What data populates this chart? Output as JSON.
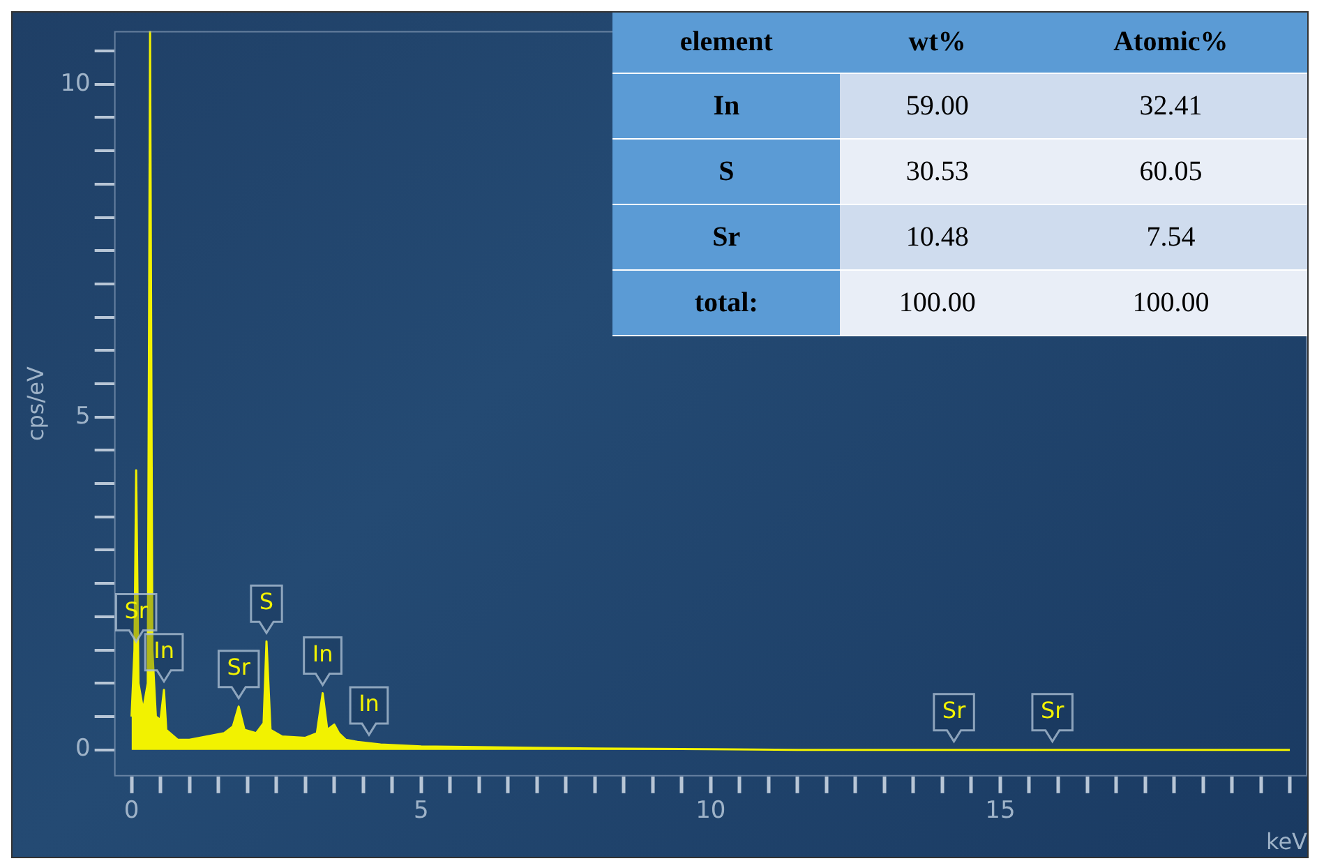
{
  "chart_data": [
    {
      "type": "area",
      "ylabel": "cps/eV",
      "xlabel": "keV",
      "color": "#f2f200",
      "x": [
        0,
        0.05,
        0.08,
        0.12,
        0.2,
        0.28,
        0.32,
        0.36,
        0.42,
        0.5,
        0.56,
        0.6,
        0.8,
        1.0,
        1.3,
        1.6,
        1.75,
        1.85,
        1.95,
        2.15,
        2.28,
        2.33,
        2.4,
        2.6,
        3.0,
        3.2,
        3.3,
        3.38,
        3.5,
        3.58,
        3.7,
        3.9,
        4.3,
        5,
        6,
        8,
        10,
        11.5,
        20
      ],
      "values": [
        0.5,
        1.5,
        4.2,
        1.0,
        0.6,
        1.0,
        10.8,
        1.5,
        0.5,
        0.45,
        0.9,
        0.3,
        0.15,
        0.15,
        0.2,
        0.25,
        0.35,
        0.65,
        0.3,
        0.25,
        0.4,
        1.63,
        0.3,
        0.2,
        0.18,
        0.25,
        0.85,
        0.3,
        0.38,
        0.25,
        0.15,
        0.12,
        0.08,
        0.05,
        0.04,
        0.02,
        0.01,
        0,
        0
      ],
      "xlim": [
        -0.3,
        20.3
      ],
      "ylim": [
        -0.4,
        10.8
      ],
      "xticks": [
        0,
        {
          "value": 0.5,
          "label": null
        },
        {
          "value": 1,
          "label": null
        },
        {
          "value": 1.5,
          "label": null
        },
        {
          "value": 2,
          "label": null
        },
        {
          "value": 2.5,
          "label": null
        },
        {
          "value": 3,
          "label": null
        },
        {
          "value": 3.5,
          "label": null
        },
        {
          "value": 4,
          "label": null
        },
        {
          "value": 4.5,
          "label": null
        },
        5,
        {
          "value": 5.5,
          "label": null
        },
        {
          "value": 6,
          "label": null
        },
        {
          "value": 6.5,
          "label": null
        },
        {
          "value": 7,
          "label": null
        },
        {
          "value": 7.5,
          "label": null
        },
        {
          "value": 8,
          "label": null
        },
        {
          "value": 8.5,
          "label": null
        },
        {
          "value": 9,
          "label": null
        },
        {
          "value": 9.5,
          "label": null
        },
        10,
        {
          "value": 10.5,
          "label": null
        },
        {
          "value": 11,
          "label": null
        },
        {
          "value": 11.5,
          "label": null
        },
        {
          "value": 12,
          "label": null
        },
        {
          "value": 12.5,
          "label": null
        },
        {
          "value": 13,
          "label": null
        },
        {
          "value": 13.5,
          "label": null
        },
        {
          "value": 14,
          "label": null
        },
        {
          "value": 14.5,
          "label": null
        },
        15,
        {
          "value": 15.5,
          "label": null
        },
        {
          "value": 16,
          "label": null
        },
        {
          "value": 16.5,
          "label": null
        },
        {
          "value": 17,
          "label": null
        },
        {
          "value": 17.5,
          "label": null
        },
        {
          "value": 18,
          "label": null
        },
        {
          "value": 18.5,
          "label": null
        },
        {
          "value": 19,
          "label": null
        },
        {
          "value": 19.5,
          "label": null
        },
        {
          "value": 20,
          "label": null
        }
      ],
      "yticks": [
        0,
        {
          "value": 0.5,
          "label": null
        },
        {
          "value": 1,
          "label": null
        },
        {
          "value": 1.5,
          "label": null
        },
        {
          "value": 2,
          "label": null
        },
        {
          "value": 2.5,
          "label": null
        },
        {
          "value": 3,
          "label": null
        },
        {
          "value": 3.5,
          "label": null
        },
        {
          "value": 4,
          "label": null
        },
        {
          "value": 4.5,
          "label": null
        },
        5,
        {
          "value": 5.5,
          "label": null
        },
        {
          "value": 6,
          "label": null
        },
        {
          "value": 6.5,
          "label": null
        },
        {
          "value": 7,
          "label": null
        },
        {
          "value": 7.5,
          "label": null
        },
        {
          "value": 8,
          "label": null
        },
        {
          "value": 8.5,
          "label": null
        },
        {
          "value": 9,
          "label": null
        },
        {
          "value": 9.5,
          "label": null
        },
        10,
        {
          "value": 10.5,
          "label": null
        }
      ],
      "grid": false,
      "legend": false,
      "marker": "none",
      "annotations": [
        {
          "text": "Sr",
          "x": 0.08,
          "y": 1.5
        },
        {
          "text": "In",
          "x": 0.56,
          "y": 0.9
        },
        {
          "text": "Sr",
          "x": 1.85,
          "y": 0.65
        },
        {
          "text": "S",
          "x": 2.33,
          "y": 1.63
        },
        {
          "text": "In",
          "x": 3.3,
          "y": 0.85
        },
        {
          "text": "In",
          "x": 4.1,
          "y": 0.1
        },
        {
          "text": "Sr",
          "x": 14.2,
          "y": 0
        },
        {
          "text": "Sr",
          "x": 15.9,
          "y": 0
        }
      ]
    },
    {
      "type": "other",
      "categories": [
        "element",
        "wt%",
        "Atomic%"
      ],
      "y_categories": [
        "In",
        "S",
        "Sr",
        "total:"
      ],
      "cell_labels": [
        [
          "59.00",
          "32.41"
        ],
        [
          "30.53",
          "60.05"
        ],
        [
          "10.48",
          "7.54"
        ],
        [
          "100.00",
          "100.00"
        ]
      ]
    }
  ]
}
